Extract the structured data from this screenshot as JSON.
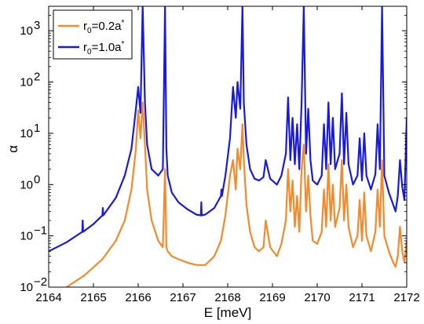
{
  "chart_data": {
    "type": "line",
    "xlabel": "E [meV]",
    "ylabel": "α",
    "xlim": [
      2164,
      2172
    ],
    "ylim": [
      0.01,
      3000
    ],
    "yscale": "log",
    "grid": false,
    "legend": "top-left",
    "x_ticks": [
      "2164",
      "2165",
      "2166",
      "2167",
      "2168",
      "2169",
      "2170",
      "2171",
      "2172"
    ],
    "y_ticks": [
      {
        "value": 0.01,
        "base": "10",
        "exp": "−2"
      },
      {
        "value": 0.1,
        "base": "10",
        "exp": "−1"
      },
      {
        "value": 1,
        "base": "10",
        "exp": "0"
      },
      {
        "value": 10,
        "base": "10",
        "exp": "1"
      },
      {
        "value": 100,
        "base": "10",
        "exp": "2"
      },
      {
        "value": 1000,
        "base": "10",
        "exp": "3"
      }
    ],
    "series": [
      {
        "legend_main": "r",
        "legend_sub": "0",
        "legend_rest": "=0.2a",
        "legend_sup": "*",
        "color": "#f28a2e",
        "x": [
          2164.4,
          2164.8,
          2165.2,
          2165.5,
          2165.7,
          2165.85,
          2165.95,
          2166.0,
          2166.05,
          2166.1,
          2166.15,
          2166.2,
          2166.3,
          2166.45,
          2166.55,
          2166.6,
          2166.63,
          2166.66,
          2166.75,
          2166.9,
          2167.1,
          2167.3,
          2167.5,
          2167.7,
          2167.85,
          2167.95,
          2168.05,
          2168.12,
          2168.18,
          2168.22,
          2168.28,
          2168.33,
          2168.36,
          2168.42,
          2168.5,
          2168.6,
          2168.7,
          2168.8,
          2168.85,
          2168.95,
          2169.1,
          2169.2,
          2169.3,
          2169.35,
          2169.4,
          2169.45,
          2169.5,
          2169.55,
          2169.6,
          2169.65,
          2169.7,
          2169.75,
          2169.8,
          2169.85,
          2169.9,
          2170.0,
          2170.1,
          2170.15,
          2170.2,
          2170.25,
          2170.3,
          2170.35,
          2170.4,
          2170.5,
          2170.55,
          2170.6,
          2170.65,
          2170.7,
          2170.8,
          2170.9,
          2170.95,
          2171.0,
          2171.05,
          2171.1,
          2171.2,
          2171.3,
          2171.35,
          2171.4,
          2171.45,
          2171.5,
          2171.6,
          2171.7,
          2171.75,
          2171.8,
          2171.85,
          2171.9,
          2171.95,
          2172.0
        ],
        "y": [
          0.01,
          0.017,
          0.035,
          0.08,
          0.2,
          0.8,
          5,
          28,
          8,
          40,
          6,
          0.8,
          0.2,
          0.08,
          0.06,
          2,
          0.06,
          0.05,
          0.04,
          0.035,
          0.03,
          0.027,
          0.027,
          0.04,
          0.08,
          0.25,
          1.5,
          3,
          0.8,
          5,
          2,
          15,
          3,
          0.4,
          0.12,
          0.06,
          0.05,
          0.06,
          0.2,
          0.06,
          0.04,
          0.07,
          0.2,
          2,
          0.3,
          1.2,
          0.15,
          0.6,
          0.12,
          2,
          6,
          0.3,
          1.5,
          0.25,
          0.08,
          0.07,
          0.12,
          0.8,
          0.15,
          2.5,
          0.2,
          1,
          0.15,
          0.35,
          3,
          0.2,
          1,
          0.15,
          0.06,
          0.1,
          0.5,
          0.08,
          0.7,
          0.1,
          0.05,
          0.12,
          0.8,
          0.15,
          3,
          0.1,
          0.05,
          0.03,
          0.025,
          0.04,
          0.15,
          0.05,
          0.03,
          0.08
        ]
      },
      {
        "legend_main": "r",
        "legend_sub": "0",
        "legend_rest": "=1.0a",
        "legend_sup": "*",
        "color": "#1a1adc",
        "x": [
          2164.0,
          2164.4,
          2164.75,
          2164.76,
          2164.77,
          2165.0,
          2165.2,
          2165.21,
          2165.22,
          2165.5,
          2165.7,
          2165.85,
          2165.95,
          2166.0,
          2166.05,
          2166.1,
          2166.15,
          2166.2,
          2166.3,
          2166.45,
          2166.55,
          2166.6,
          2166.63,
          2166.66,
          2166.75,
          2166.9,
          2167.1,
          2167.3,
          2167.4,
          2167.41,
          2167.42,
          2167.5,
          2167.7,
          2167.85,
          2167.86,
          2167.87,
          2167.95,
          2168.05,
          2168.12,
          2168.18,
          2168.22,
          2168.28,
          2168.33,
          2168.36,
          2168.42,
          2168.5,
          2168.6,
          2168.7,
          2168.8,
          2168.85,
          2168.95,
          2169.1,
          2169.2,
          2169.3,
          2169.35,
          2169.4,
          2169.45,
          2169.5,
          2169.55,
          2169.6,
          2169.65,
          2169.7,
          2169.75,
          2169.8,
          2169.85,
          2169.9,
          2170.0,
          2170.1,
          2170.15,
          2170.2,
          2170.25,
          2170.3,
          2170.35,
          2170.4,
          2170.5,
          2170.55,
          2170.6,
          2170.65,
          2170.7,
          2170.8,
          2170.9,
          2170.95,
          2171.0,
          2171.05,
          2171.1,
          2171.2,
          2171.3,
          2171.35,
          2171.4,
          2171.45,
          2171.5,
          2171.6,
          2171.7,
          2171.75,
          2171.8,
          2171.85,
          2171.9,
          2171.95,
          2172.0
        ],
        "y": [
          0.05,
          0.075,
          0.12,
          0.2,
          0.12,
          0.17,
          0.25,
          0.35,
          0.25,
          0.55,
          1.5,
          5,
          30,
          80,
          25,
          3000,
          40,
          6,
          2,
          1.5,
          2,
          3000,
          5,
          1.5,
          0.7,
          0.45,
          0.33,
          0.26,
          0.25,
          0.45,
          0.25,
          0.26,
          0.35,
          0.6,
          0.8,
          0.6,
          1.5,
          8,
          80,
          20,
          100,
          30,
          3000,
          40,
          6,
          2,
          1.3,
          1.2,
          1.4,
          3,
          1.3,
          1,
          1.5,
          4,
          50,
          3,
          20,
          2.5,
          15,
          2,
          40,
          3000,
          4,
          30,
          3,
          1.2,
          1,
          1.5,
          15,
          2,
          40,
          2.5,
          20,
          2,
          4,
          60,
          2.5,
          25,
          2.5,
          1,
          1.5,
          8,
          1.2,
          10,
          1.5,
          0.8,
          1.6,
          15,
          2,
          3000,
          1.5,
          0.7,
          0.4,
          0.3,
          0.6,
          3,
          0.9,
          0.5,
          20
        ]
      }
    ]
  }
}
